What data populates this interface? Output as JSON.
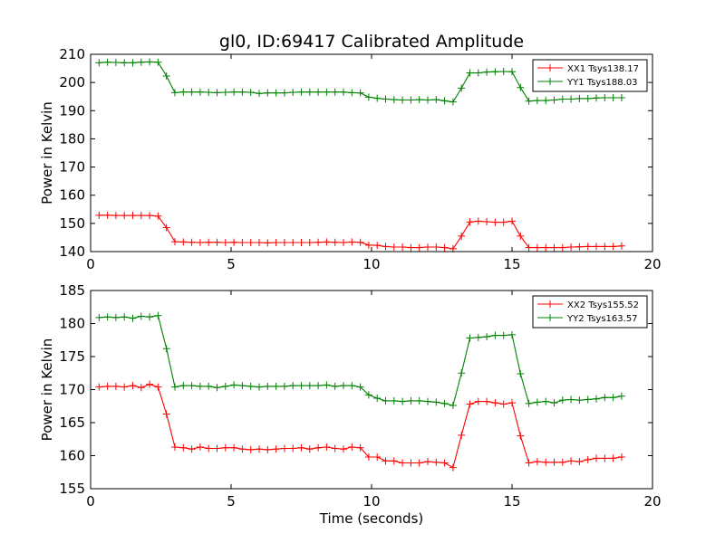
{
  "figure": {
    "title": "gl0, ID:69417 Calibrated Amplitude",
    "xlabel": "Time (seconds)"
  },
  "chart_data": [
    {
      "type": "line",
      "title": "gl0, ID:69417 Calibrated Amplitude",
      "xlabel": "",
      "ylabel": "Power in Kelvin",
      "xlim": [
        0,
        20
      ],
      "ylim": [
        140,
        210
      ],
      "xticks": [
        0,
        5,
        10,
        15,
        20
      ],
      "yticks": [
        140,
        150,
        160,
        170,
        180,
        190,
        200,
        210
      ],
      "grid": false,
      "legend": "top-right",
      "marker": "+",
      "x": [
        0.3,
        0.6,
        0.9,
        1.2,
        1.5,
        1.8,
        2.1,
        2.4,
        2.7,
        3.0,
        3.3,
        3.6,
        3.9,
        4.2,
        4.5,
        4.8,
        5.1,
        5.4,
        5.7,
        6.0,
        6.3,
        6.6,
        6.9,
        7.2,
        7.5,
        7.8,
        8.1,
        8.4,
        8.7,
        9.0,
        9.3,
        9.6,
        9.9,
        10.2,
        10.5,
        10.8,
        11.1,
        11.4,
        11.7,
        12.0,
        12.3,
        12.6,
        12.9,
        13.2,
        13.5,
        13.8,
        14.1,
        14.4,
        14.7,
        15.0,
        15.3,
        15.6,
        15.9,
        16.2,
        16.5,
        16.8,
        17.1,
        17.4,
        17.7,
        18.0,
        18.3,
        18.6,
        18.9
      ],
      "series": [
        {
          "name": "XX1 Tsys138.17",
          "color": "#ff0000",
          "values": [
            152.9,
            152.9,
            152.8,
            152.8,
            152.8,
            152.8,
            152.8,
            152.6,
            148.5,
            143.5,
            143.4,
            143.3,
            143.2,
            143.3,
            143.3,
            143.2,
            143.3,
            143.2,
            143.2,
            143.2,
            143.1,
            143.2,
            143.2,
            143.2,
            143.2,
            143.2,
            143.3,
            143.4,
            143.3,
            143.2,
            143.4,
            143.3,
            142.3,
            142.2,
            141.8,
            141.6,
            141.6,
            141.4,
            141.4,
            141.6,
            141.6,
            141.4,
            141.0,
            145.5,
            150.5,
            150.8,
            150.6,
            150.4,
            150.4,
            150.8,
            145.5,
            141.4,
            141.4,
            141.4,
            141.4,
            141.4,
            141.6,
            141.7,
            141.8,
            141.8,
            141.8,
            141.8,
            142.0
          ]
        },
        {
          "name": "YY1 Tsys188.03",
          "color": "#008000",
          "values": [
            207.0,
            207.2,
            207.1,
            207.0,
            207.0,
            207.2,
            207.3,
            207.2,
            202.3,
            196.4,
            196.6,
            196.6,
            196.6,
            196.5,
            196.4,
            196.5,
            196.6,
            196.6,
            196.5,
            196.1,
            196.3,
            196.3,
            196.3,
            196.5,
            196.6,
            196.6,
            196.6,
            196.6,
            196.6,
            196.6,
            196.4,
            196.3,
            194.8,
            194.4,
            194.1,
            193.9,
            193.8,
            193.8,
            193.9,
            193.8,
            193.9,
            193.5,
            193.1,
            198.0,
            203.4,
            203.4,
            203.7,
            203.8,
            203.9,
            203.8,
            198.2,
            193.4,
            193.6,
            193.6,
            193.8,
            194.1,
            194.1,
            194.3,
            194.3,
            194.5,
            194.6,
            194.6,
            194.6
          ]
        }
      ]
    },
    {
      "type": "line",
      "title": "",
      "xlabel": "Time (seconds)",
      "ylabel": "Power in Kelvin",
      "xlim": [
        0,
        20
      ],
      "ylim": [
        155,
        185
      ],
      "xticks": [
        0,
        5,
        10,
        15,
        20
      ],
      "yticks": [
        155,
        160,
        165,
        170,
        175,
        180,
        185
      ],
      "grid": false,
      "legend": "top-right",
      "marker": "+",
      "x": [
        0.3,
        0.6,
        0.9,
        1.2,
        1.5,
        1.8,
        2.1,
        2.4,
        2.7,
        3.0,
        3.3,
        3.6,
        3.9,
        4.2,
        4.5,
        4.8,
        5.1,
        5.4,
        5.7,
        6.0,
        6.3,
        6.6,
        6.9,
        7.2,
        7.5,
        7.8,
        8.1,
        8.4,
        8.7,
        9.0,
        9.3,
        9.6,
        9.9,
        10.2,
        10.5,
        10.8,
        11.1,
        11.4,
        11.7,
        12.0,
        12.3,
        12.6,
        12.9,
        13.2,
        13.5,
        13.8,
        14.1,
        14.4,
        14.7,
        15.0,
        15.3,
        15.6,
        15.9,
        16.2,
        16.5,
        16.8,
        17.1,
        17.4,
        17.7,
        18.0,
        18.3,
        18.6,
        18.9
      ],
      "series": [
        {
          "name": "XX2 Tsys155.52",
          "color": "#ff0000",
          "values": [
            170.4,
            170.5,
            170.5,
            170.4,
            170.6,
            170.3,
            170.8,
            170.4,
            166.3,
            161.3,
            161.2,
            161.0,
            161.3,
            161.1,
            161.1,
            161.2,
            161.2,
            161.0,
            160.9,
            161.0,
            160.9,
            161.0,
            161.1,
            161.1,
            161.2,
            161.0,
            161.2,
            161.3,
            161.1,
            161.0,
            161.3,
            161.2,
            159.8,
            159.8,
            159.2,
            159.2,
            158.9,
            158.9,
            158.9,
            159.1,
            159.0,
            158.9,
            158.2,
            163.1,
            167.8,
            168.2,
            168.2,
            168.0,
            167.8,
            168.0,
            163.0,
            158.9,
            159.1,
            159.0,
            159.0,
            159.0,
            159.2,
            159.1,
            159.4,
            159.6,
            159.6,
            159.6,
            159.8
          ]
        },
        {
          "name": "YY2 Tsys163.57",
          "color": "#008000",
          "values": [
            180.9,
            181.0,
            180.9,
            181.0,
            180.8,
            181.1,
            181.0,
            181.2,
            176.2,
            170.4,
            170.6,
            170.6,
            170.5,
            170.5,
            170.3,
            170.5,
            170.7,
            170.6,
            170.5,
            170.4,
            170.5,
            170.5,
            170.5,
            170.6,
            170.6,
            170.6,
            170.6,
            170.7,
            170.5,
            170.6,
            170.6,
            170.4,
            169.2,
            168.7,
            168.3,
            168.3,
            168.2,
            168.3,
            168.3,
            168.2,
            168.1,
            167.9,
            167.6,
            172.5,
            177.8,
            177.9,
            178.0,
            178.2,
            178.2,
            178.3,
            172.4,
            167.9,
            168.1,
            168.2,
            168.0,
            168.4,
            168.5,
            168.4,
            168.5,
            168.6,
            168.8,
            168.8,
            169.0
          ]
        }
      ]
    }
  ]
}
